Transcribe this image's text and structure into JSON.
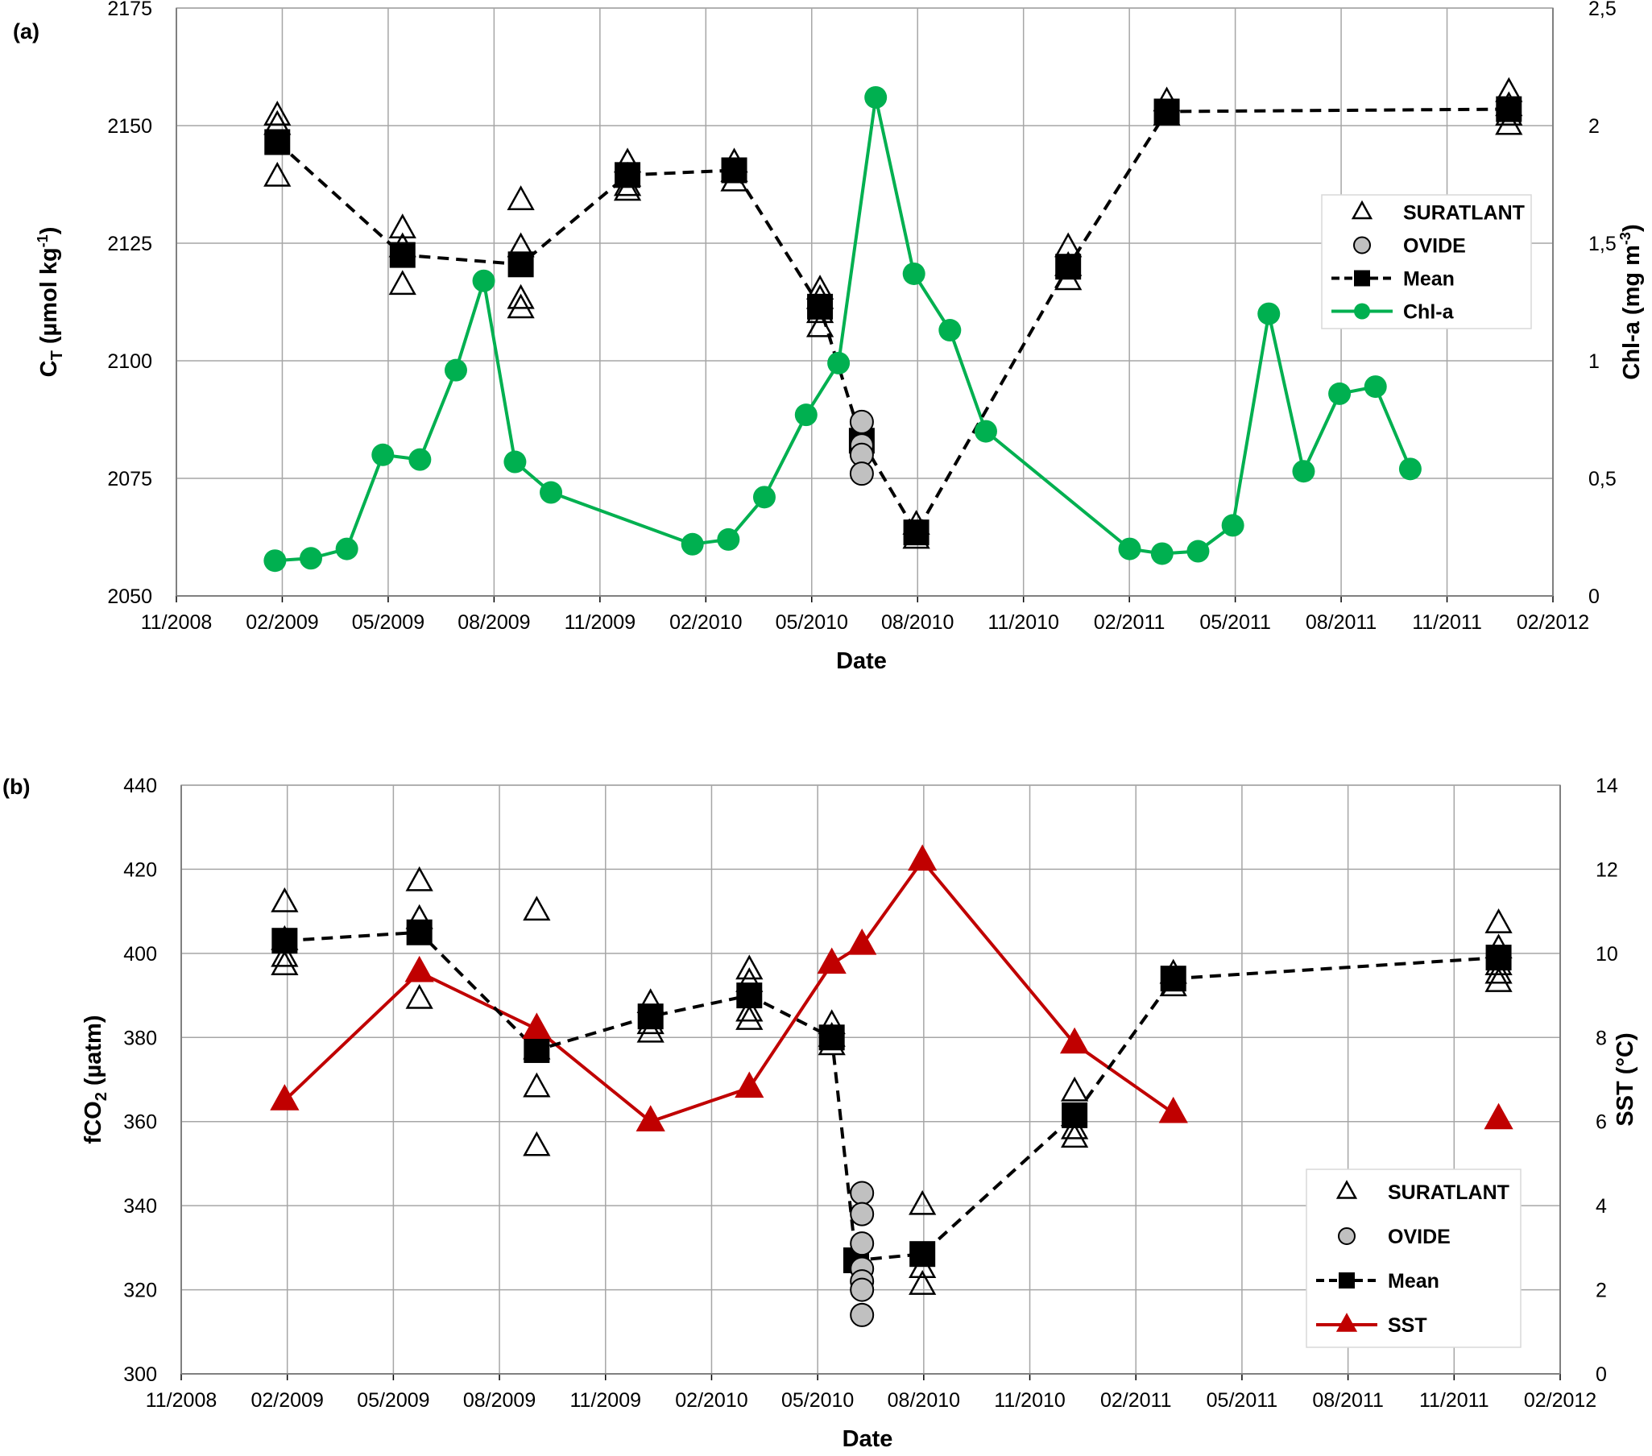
{
  "chart_data": [
    {
      "panel_tag": "(a)",
      "type": "scatter",
      "xlabel": "Date",
      "ylabel_main": "C",
      "ylabel_sub": "T",
      "ylabel_rest": " (µmol kg",
      "ylabel_sup": "-1",
      "ylabel_end": ")",
      "y2label_main": "Chl-a (mg m",
      "y2label_sup": "-3",
      "y2label_end": ")",
      "x_ticks": [
        "11/2008",
        "02/2009",
        "05/2009",
        "08/2009",
        "11/2009",
        "02/2010",
        "05/2010",
        "08/2010",
        "11/2010",
        "02/2011",
        "05/2011",
        "08/2011",
        "11/2011",
        "02/2012"
      ],
      "xlim": [
        "2008-11-01",
        "2012-02-01"
      ],
      "ylim": [
        2050,
        2175
      ],
      "y_ticks": [
        "2050",
        "2075",
        "2100",
        "2125",
        "2150",
        "2175"
      ],
      "y2lim": [
        0,
        2.5
      ],
      "y2_ticks": [
        "0",
        "0,5",
        "1",
        "1,5",
        "2",
        "2,5"
      ],
      "grid": true,
      "legend_position": "right",
      "legend": [
        "SURATLANT",
        "OVIDE",
        "Mean",
        "Chl-a"
      ],
      "series": [
        {
          "name": "SURATLANT",
          "axis": "left",
          "points": [
            [
              "2009-01-27",
              2152
            ],
            [
              "2009-01-27",
              2150
            ],
            [
              "2009-01-27",
              2139
            ],
            [
              "2009-05-15",
              2128
            ],
            [
              "2009-05-15",
              2124
            ],
            [
              "2009-05-15",
              2116
            ],
            [
              "2009-08-25",
              2134
            ],
            [
              "2009-08-25",
              2124
            ],
            [
              "2009-08-25",
              2113
            ],
            [
              "2009-08-25",
              2111
            ],
            [
              "2009-11-25",
              2142
            ],
            [
              "2009-11-25",
              2139
            ],
            [
              "2009-11-25",
              2137
            ],
            [
              "2009-11-25",
              2136
            ],
            [
              "2010-02-25",
              2142
            ],
            [
              "2010-02-25",
              2140
            ],
            [
              "2010-02-25",
              2138
            ],
            [
              "2010-05-10",
              2115
            ],
            [
              "2010-05-10",
              2113
            ],
            [
              "2010-05-10",
              2110
            ],
            [
              "2010-05-10",
              2107
            ],
            [
              "2010-08-01",
              2065
            ],
            [
              "2010-08-01",
              2062
            ],
            [
              "2010-12-10",
              2124
            ],
            [
              "2010-12-10",
              2120
            ],
            [
              "2010-12-10",
              2117
            ],
            [
              "2011-03-05",
              2155
            ],
            [
              "2011-03-05",
              2152
            ],
            [
              "2011-12-25",
              2157
            ],
            [
              "2011-12-25",
              2154
            ],
            [
              "2011-12-25",
              2152
            ],
            [
              "2011-12-25",
              2150
            ]
          ]
        },
        {
          "name": "OVIDE",
          "axis": "left",
          "points": [
            [
              "2010-06-15",
              2087
            ],
            [
              "2010-06-15",
              2082
            ],
            [
              "2010-06-15",
              2080
            ],
            [
              "2010-06-15",
              2076
            ]
          ]
        },
        {
          "name": "Mean",
          "axis": "left",
          "points": [
            [
              "2009-01-27",
              2146.5
            ],
            [
              "2009-05-15",
              2122.5
            ],
            [
              "2009-08-25",
              2120.5
            ],
            [
              "2009-11-25",
              2139.5
            ],
            [
              "2010-02-25",
              2140.5
            ],
            [
              "2010-05-10",
              2111.5
            ],
            [
              "2010-06-15",
              2083
            ],
            [
              "2010-08-01",
              2063.5
            ],
            [
              "2010-12-10",
              2120
            ],
            [
              "2011-03-05",
              2153
            ],
            [
              "2011-12-25",
              2153.5
            ]
          ]
        },
        {
          "name": "Chl-a",
          "axis": "right",
          "points": [
            [
              "2009-01-25",
              0.15
            ],
            [
              "2009-02-25",
              0.16
            ],
            [
              "2009-03-28",
              0.2
            ],
            [
              "2009-04-28",
              0.6
            ],
            [
              "2009-05-30",
              0.58
            ],
            [
              "2009-06-30",
              0.96
            ],
            [
              "2009-07-24",
              1.34
            ],
            [
              "2009-08-20",
              0.57
            ],
            [
              "2009-09-20",
              0.44
            ],
            [
              "2010-01-20",
              0.22
            ],
            [
              "2010-02-20",
              0.24
            ],
            [
              "2010-03-23",
              0.42
            ],
            [
              "2010-04-28",
              0.77
            ],
            [
              "2010-05-26",
              0.99
            ],
            [
              "2010-06-27",
              2.12
            ],
            [
              "2010-07-30",
              1.37
            ],
            [
              "2010-08-30",
              1.13
            ],
            [
              "2010-09-30",
              0.7
            ],
            [
              "2011-02-01",
              0.2
            ],
            [
              "2011-03-01",
              0.18
            ],
            [
              "2011-04-01",
              0.19
            ],
            [
              "2011-05-01",
              0.3
            ],
            [
              "2011-06-01",
              1.2
            ],
            [
              "2011-07-01",
              0.53
            ],
            [
              "2011-08-01",
              0.86
            ],
            [
              "2011-09-01",
              0.89
            ],
            [
              "2011-10-01",
              0.54
            ]
          ]
        }
      ]
    },
    {
      "panel_tag": "(b)",
      "type": "scatter",
      "xlabel": "Date",
      "ylabel_main": "fCO",
      "ylabel_sub": "2",
      "ylabel_rest": " (µatm)",
      "y2label_main": "SST (°C)",
      "x_ticks": [
        "11/2008",
        "02/2009",
        "05/2009",
        "08/2009",
        "11/2009",
        "02/2010",
        "05/2010",
        "08/2010",
        "11/2010",
        "02/2011",
        "05/2011",
        "08/2011",
        "11/2011",
        "02/2012"
      ],
      "xlim": [
        "2008-11-01",
        "2012-02-01"
      ],
      "ylim": [
        300,
        440
      ],
      "y_ticks": [
        "300",
        "320",
        "340",
        "360",
        "380",
        "400",
        "420",
        "440"
      ],
      "y2lim": [
        0,
        14
      ],
      "y2_ticks": [
        "0",
        "2",
        "4",
        "6",
        "8",
        "10",
        "12",
        "14"
      ],
      "grid": true,
      "legend_position": "bottom-right",
      "legend": [
        "SURATLANT",
        "OVIDE",
        "Mean",
        "SST"
      ],
      "series": [
        {
          "name": "SURATLANT",
          "axis": "left",
          "points": [
            [
              "2009-01-29",
              412
            ],
            [
              "2009-01-29",
              403
            ],
            [
              "2009-01-29",
              399
            ],
            [
              "2009-01-29",
              397
            ],
            [
              "2009-05-25",
              417
            ],
            [
              "2009-05-25",
              408
            ],
            [
              "2009-05-25",
              389
            ],
            [
              "2009-09-03",
              410
            ],
            [
              "2009-09-03",
              377
            ],
            [
              "2009-09-03",
              368
            ],
            [
              "2009-09-03",
              354
            ],
            [
              "2009-12-10",
              388
            ],
            [
              "2009-12-10",
              383
            ],
            [
              "2009-12-10",
              381
            ],
            [
              "2010-03-05",
              396
            ],
            [
              "2010-03-05",
              393
            ],
            [
              "2010-03-05",
              386
            ],
            [
              "2010-03-05",
              384
            ],
            [
              "2010-05-15",
              383
            ],
            [
              "2010-05-15",
              380
            ],
            [
              "2010-05-15",
              378
            ],
            [
              "2010-08-01",
              340
            ],
            [
              "2010-08-01",
              325
            ],
            [
              "2010-08-01",
              321
            ],
            [
              "2010-12-10",
              367
            ],
            [
              "2010-12-10",
              358
            ],
            [
              "2010-12-10",
              356
            ],
            [
              "2011-03-05",
              395
            ],
            [
              "2011-03-05",
              392
            ],
            [
              "2011-12-10",
              407
            ],
            [
              "2011-12-10",
              401
            ],
            [
              "2011-12-10",
              397
            ],
            [
              "2011-12-10",
              395
            ],
            [
              "2011-12-10",
              393
            ]
          ]
        },
        {
          "name": "OVIDE",
          "axis": "left",
          "points": [
            [
              "2010-06-10",
              343
            ],
            [
              "2010-06-10",
              338
            ],
            [
              "2010-06-10",
              331
            ],
            [
              "2010-06-10",
              325
            ],
            [
              "2010-06-10",
              322
            ],
            [
              "2010-06-10",
              320
            ],
            [
              "2010-06-10",
              314
            ]
          ]
        },
        {
          "name": "Mean",
          "axis": "left",
          "points": [
            [
              "2009-01-29",
              403
            ],
            [
              "2009-05-25",
              405
            ],
            [
              "2009-09-03",
              377
            ],
            [
              "2009-12-10",
              385
            ],
            [
              "2010-03-05",
              390
            ],
            [
              "2010-05-15",
              380
            ],
            [
              "2010-06-05",
              327
            ],
            [
              "2010-08-01",
              328.5
            ],
            [
              "2010-12-10",
              361.5
            ],
            [
              "2011-03-05",
              394
            ],
            [
              "2011-12-10",
              399
            ]
          ]
        },
        {
          "name": "SST",
          "axis": "right",
          "points": [
            [
              "2009-01-29",
              6.5
            ],
            [
              "2009-05-25",
              9.55
            ],
            [
              "2009-09-03",
              8.2
            ],
            [
              "2009-12-10",
              6.0
            ],
            [
              "2010-03-05",
              6.8
            ],
            [
              "2010-05-15",
              9.75
            ],
            [
              "2010-06-10",
              10.2
            ],
            [
              "2010-08-01",
              12.2
            ],
            [
              "2010-12-10",
              7.85
            ],
            [
              "2011-03-05",
              6.2
            ]
          ]
        },
        {
          "name": "SST",
          "axis": "right",
          "points": [
            [
              "2011-12-10",
              6.05
            ]
          ]
        }
      ]
    }
  ],
  "colors": {
    "chl": "#00b050",
    "sst": "#c00000",
    "mean": "#000000",
    "ovide_fill": "#c0c0c0",
    "grid": "#a6a6a6"
  }
}
